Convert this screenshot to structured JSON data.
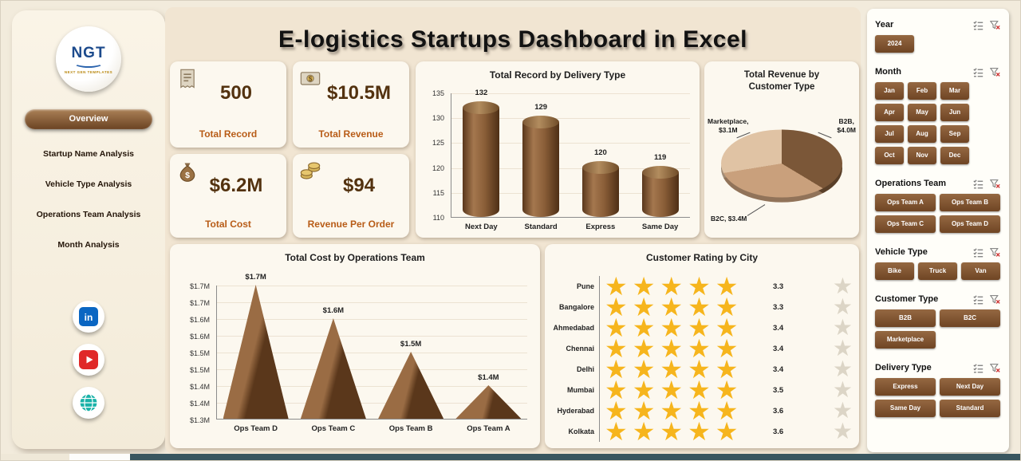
{
  "header": {
    "title": "E-logistics Startups Dashboard in Excel"
  },
  "sidebar": {
    "logo_text": "NGT",
    "logo_subtext": "NEXT GEN TEMPLATES",
    "items": [
      {
        "label": "Overview",
        "active": true
      },
      {
        "label": "Startup Name Analysis",
        "active": false
      },
      {
        "label": "Vehicle Type Analysis",
        "active": false
      },
      {
        "label": "Operations Team Analysis",
        "active": false
      },
      {
        "label": "Month Analysis",
        "active": false
      }
    ],
    "social_icons": [
      "linkedin-icon",
      "youtube-icon",
      "globe-icon"
    ]
  },
  "kpis": [
    {
      "value": "500",
      "label": "Total Record",
      "icon": "receipt-icon"
    },
    {
      "value": "$10.5M",
      "label": "Total Revenue",
      "icon": "money-check-icon"
    },
    {
      "value": "$6.2M",
      "label": "Total Cost",
      "icon": "money-bag-icon"
    },
    {
      "value": "$94",
      "label": "Revenue Per Order",
      "icon": "coins-icon"
    }
  ],
  "chart_data": [
    {
      "type": "bar",
      "title": "Total Record by Delivery Type",
      "categories": [
        "Next Day",
        "Standard",
        "Express",
        "Same Day"
      ],
      "values": [
        132,
        129,
        120,
        119
      ],
      "ylim": [
        110,
        135
      ],
      "yticks_top_down": [
        "135",
        "130",
        "125",
        "120",
        "115",
        "110"
      ],
      "bar_color": "#7a4f2c"
    },
    {
      "type": "pie",
      "title": "Total Revenue by Customer Type",
      "slices": [
        {
          "name_label": "B2B,",
          "value": 4.0,
          "value_label": "$4.0M",
          "color": "#7b5738"
        },
        {
          "name_label": "B2C,",
          "value": 3.4,
          "value_label": "$3.4M",
          "color": "#c9a07c"
        },
        {
          "name_label": "Marketplace,",
          "value": 3.1,
          "value_label": "$3.1M",
          "color": "#e0c3a4"
        }
      ]
    },
    {
      "type": "pyramid",
      "title": "Total Cost by Operations Team",
      "categories": [
        "Ops Team D",
        "Ops Team C",
        "Ops Team B",
        "Ops Team A"
      ],
      "values": [
        1.7,
        1.6,
        1.5,
        1.4
      ],
      "data_labels": [
        "$1.7M",
        "$1.6M",
        "$1.5M",
        "$1.4M"
      ],
      "ylim": [
        1.3,
        1.7
      ],
      "yticks_top_down": [
        "$1.7M",
        "$1.7M",
        "$1.6M",
        "$1.6M",
        "$1.5M",
        "$1.5M",
        "$1.4M",
        "$1.4M",
        "$1.3M"
      ],
      "grid": true
    },
    {
      "type": "stars",
      "title": "Customer Rating by City",
      "categories": [
        "Pune",
        "Bangalore",
        "Ahmedabad",
        "Chennai",
        "Delhi",
        "Mumbai",
        "Hyderabad",
        "Kolkata"
      ],
      "values": [
        "3.3",
        "3.3",
        "3.4",
        "3.4",
        "3.4",
        "3.5",
        "3.6",
        "3.6"
      ],
      "max_stars": 5,
      "star_color": "#f6b51d"
    }
  ],
  "slicers": [
    {
      "title": "Year",
      "cols": 3,
      "options": [
        "2024"
      ]
    },
    {
      "title": "Month",
      "cols": 4,
      "options": [
        "Jan",
        "Feb",
        "Mar",
        "Apr",
        "May",
        "Jun",
        "Jul",
        "Aug",
        "Sep",
        "Oct",
        "Nov",
        "Dec"
      ]
    },
    {
      "title": "Operations Team",
      "cols": 2,
      "options": [
        "Ops Team A",
        "Ops Team B",
        "Ops Team C",
        "Ops Team D"
      ]
    },
    {
      "title": "Vehicle Type",
      "cols": 3,
      "options": [
        "Bike",
        "Truck",
        "Van"
      ]
    },
    {
      "title": "Customer Type",
      "cols": 2,
      "options": [
        "B2B",
        "B2C",
        "Marketplace"
      ]
    },
    {
      "title": "Delivery Type",
      "cols": 2,
      "options": [
        "Express",
        "Next Day",
        "Same Day",
        "Standard"
      ]
    }
  ],
  "slicer_header_icons": [
    "multiselect-icon",
    "clear-filter-icon"
  ],
  "colors": {
    "accent_brown": "#7a4f2c",
    "kpi_value": "#53320f",
    "kpi_label": "#b85c17",
    "star_gold": "#f6b51d",
    "panel_bg": "#fffef9"
  }
}
